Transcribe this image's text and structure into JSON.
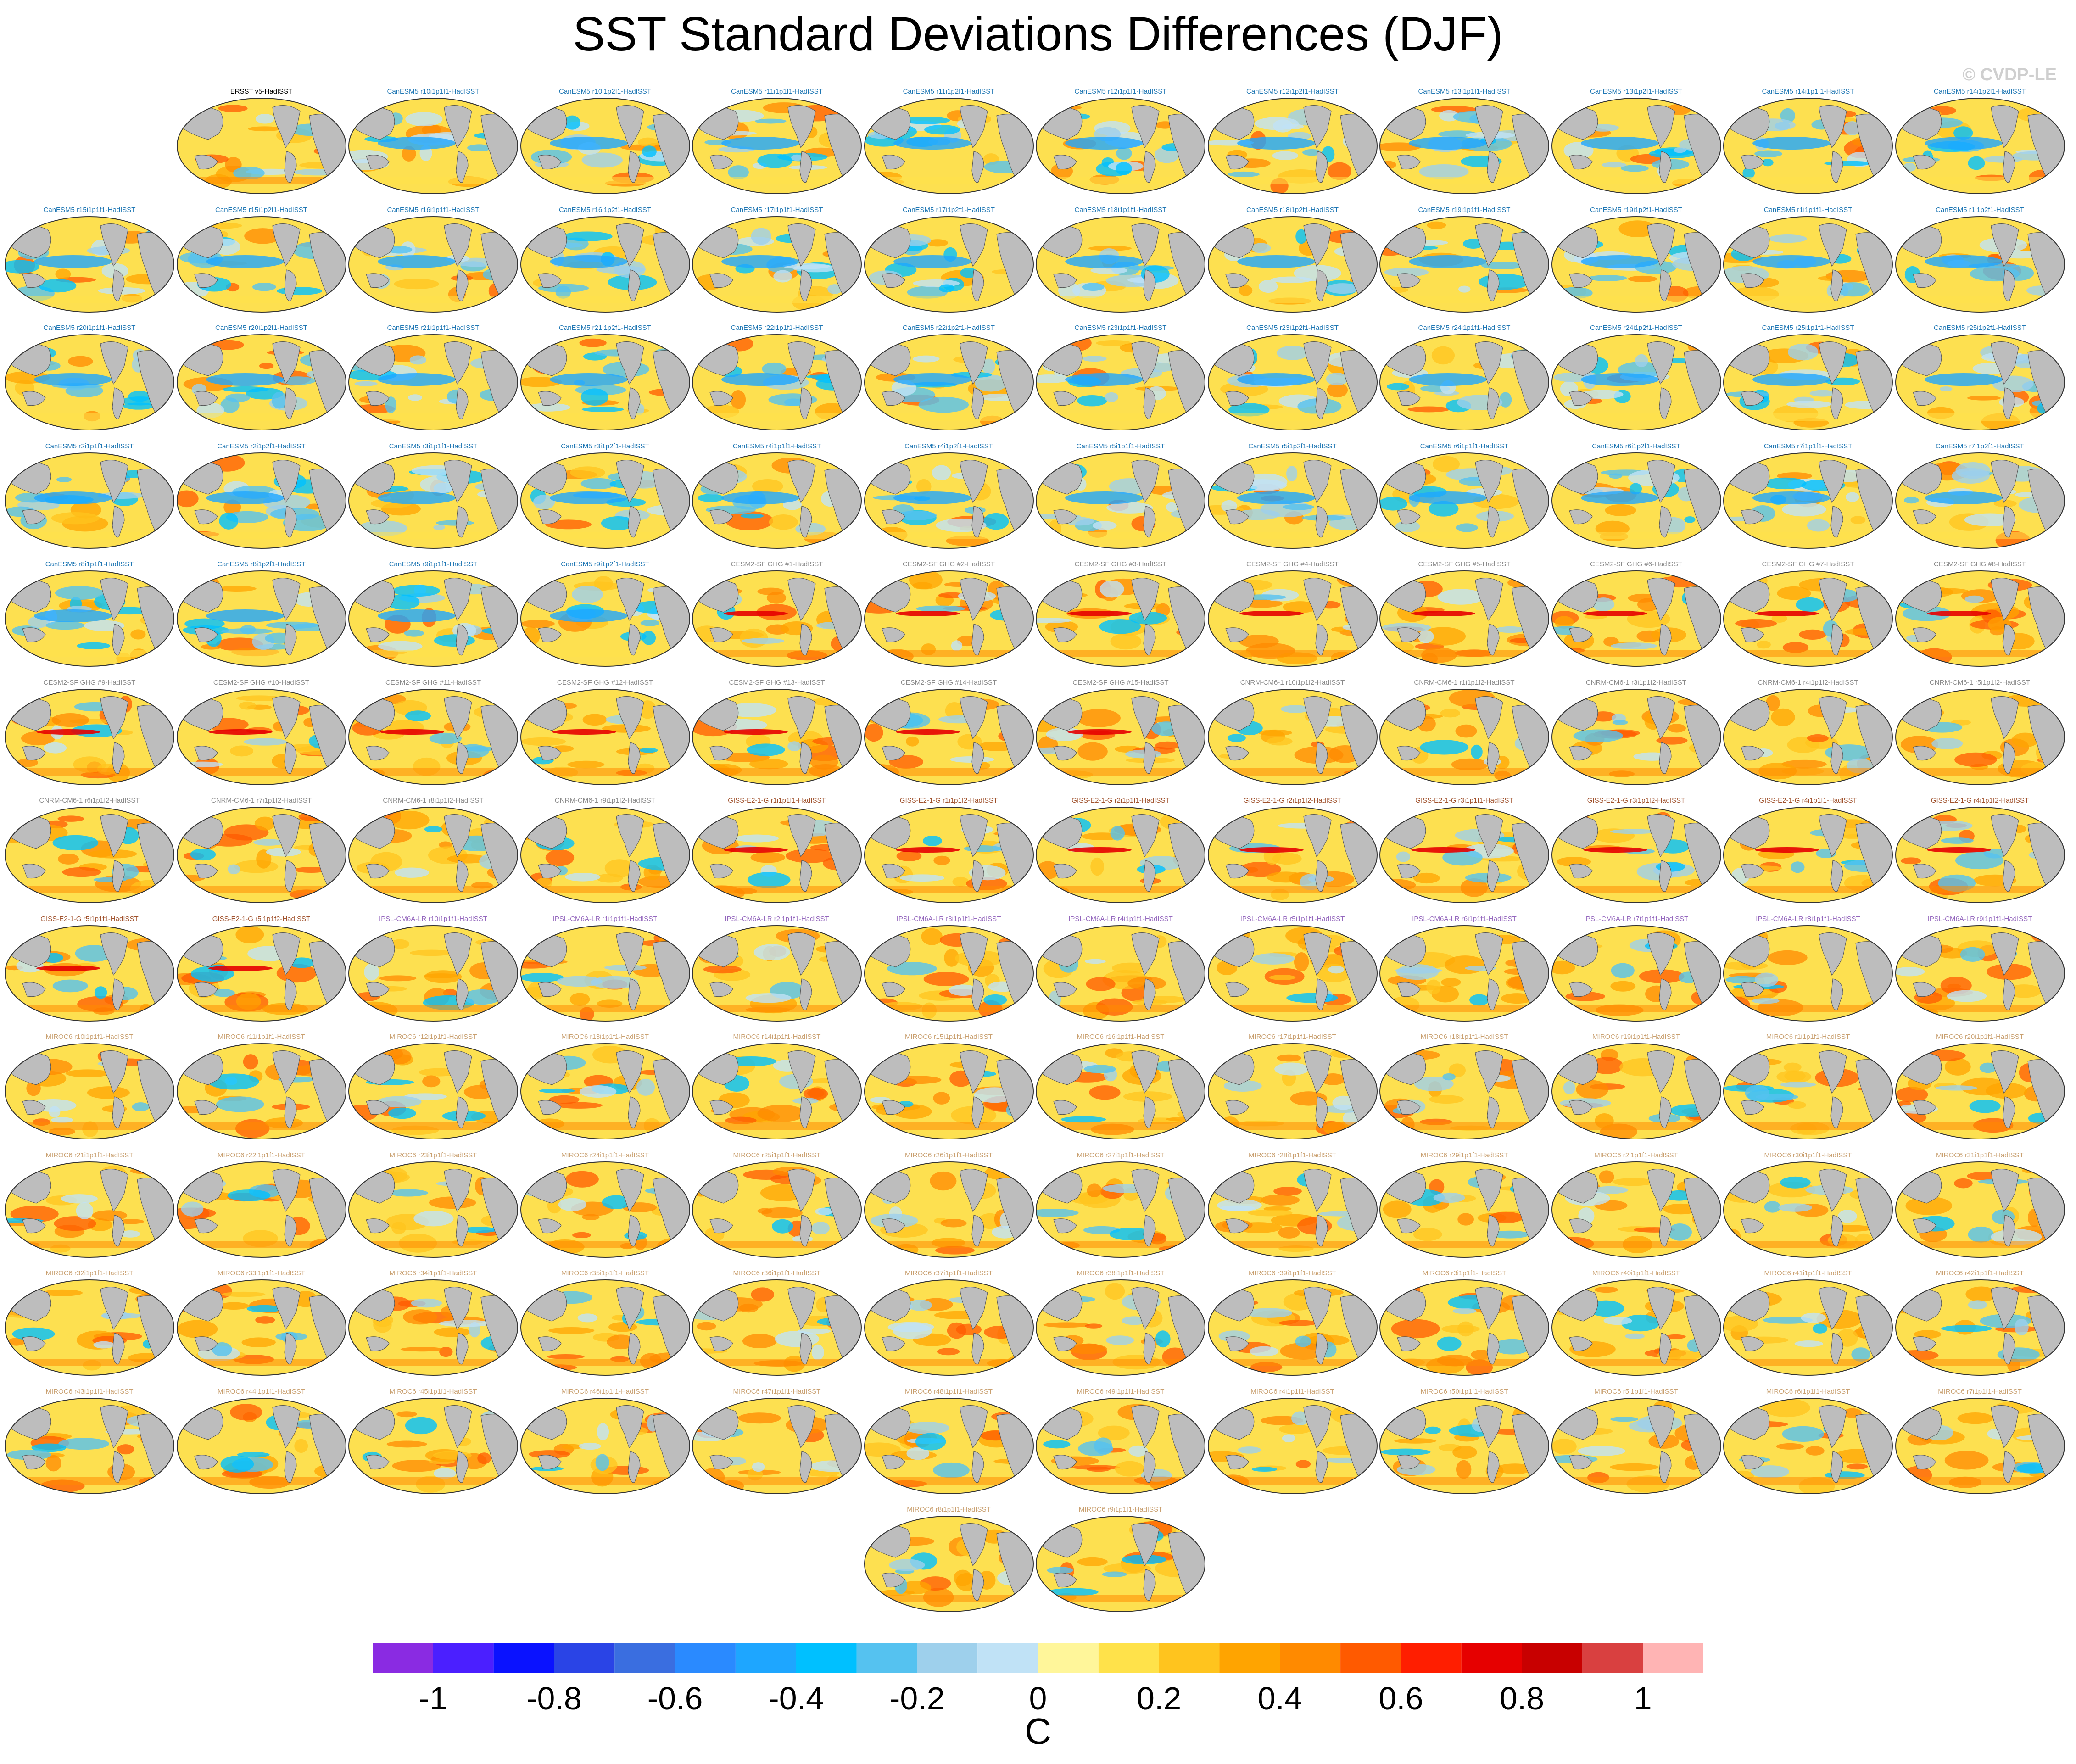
{
  "title": "SST Standard Deviations Differences (DJF)",
  "watermark": "© CVDP-LE",
  "colors": {
    "ocean_base": "#fde050",
    "land": "#bdbdbd",
    "label_colors": {
      "obs": "#000000",
      "CanESM5": "#1f77b4",
      "CESM2-SF-GHG": "#8a8a8a",
      "CNRM-CM6-1": "#8a8a8a",
      "GISS-E2-1-G": "#a0522d",
      "IPSL-CM6A-LR": "#9467bd",
      "MIROC6": "#c9a070"
    }
  },
  "chart_data": {
    "type": "heatmap",
    "title": "SST Standard Deviations Differences (DJF)",
    "colorbar": {
      "label": "C",
      "levels": [
        -1.1,
        -1.0,
        -0.9,
        -0.8,
        -0.7,
        -0.6,
        -0.5,
        -0.4,
        -0.3,
        -0.2,
        -0.1,
        0,
        0.1,
        0.2,
        0.3,
        0.4,
        0.5,
        0.6,
        0.7,
        0.8,
        0.9,
        1.0,
        1.1
      ],
      "tick_values": [
        -1,
        -0.8,
        -0.6,
        -0.4,
        -0.2,
        0,
        0.2,
        0.4,
        0.6,
        0.8,
        1
      ],
      "tick_labels": [
        "-1",
        "-0.8",
        "-0.6",
        "-0.4",
        "-0.2",
        "0",
        "0.2",
        "0.4",
        "0.6",
        "0.8",
        "1"
      ],
      "colors": [
        "#8a2be2",
        "#4b1fff",
        "#0a12ff",
        "#2a44e6",
        "#3a6ee0",
        "#2a8aff",
        "#1ea6ff",
        "#00c0ff",
        "#55c2f0",
        "#9ed0ec",
        "#c0e2f6",
        "#fff69a",
        "#ffe24a",
        "#ffc41e",
        "#ffa400",
        "#ff8a00",
        "#ff5a00",
        "#ff1e00",
        "#e60000",
        "#c80000",
        "#d94040",
        "#ffb4b4"
      ]
    },
    "panel_rows": [
      [
        "ERSST v5-HadISST",
        "CanESM5 r10i1p1f1-HadISST",
        "CanESM5 r10i1p2f1-HadISST",
        "CanESM5 r11i1p1f1-HadISST",
        "CanESM5 r11i1p2f1-HadISST",
        "CanESM5 r12i1p1f1-HadISST",
        "CanESM5 r12i1p2f1-HadISST",
        "CanESM5 r13i1p1f1-HadISST",
        "CanESM5 r13i1p2f1-HadISST",
        "CanESM5 r14i1p1f1-HadISST",
        "CanESM5 r14i1p2f1-HadISST"
      ],
      [
        "CanESM5 r15i1p1f1-HadISST",
        "CanESM5 r15i1p2f1-HadISST",
        "CanESM5 r16i1p1f1-HadISST",
        "CanESM5 r16i1p2f1-HadISST",
        "CanESM5 r17i1p1f1-HadISST",
        "CanESM5 r17i1p2f1-HadISST",
        "CanESM5 r18i1p1f1-HadISST",
        "CanESM5 r18i1p2f1-HadISST",
        "CanESM5 r19i1p1f1-HadISST",
        "CanESM5 r19i1p2f1-HadISST",
        "CanESM5 r1i1p1f1-HadISST",
        "CanESM5 r1i1p2f1-HadISST"
      ],
      [
        "CanESM5 r20i1p1f1-HadISST",
        "CanESM5 r20i1p2f1-HadISST",
        "CanESM5 r21i1p1f1-HadISST",
        "CanESM5 r21i1p2f1-HadISST",
        "CanESM5 r22i1p1f1-HadISST",
        "CanESM5 r22i1p2f1-HadISST",
        "CanESM5 r23i1p1f1-HadISST",
        "CanESM5 r23i1p2f1-HadISST",
        "CanESM5 r24i1p1f1-HadISST",
        "CanESM5 r24i1p2f1-HadISST",
        "CanESM5 r25i1p1f1-HadISST",
        "CanESM5 r25i1p2f1-HadISST"
      ],
      [
        "CanESM5 r2i1p1f1-HadISST",
        "CanESM5 r2i1p2f1-HadISST",
        "CanESM5 r3i1p1f1-HadISST",
        "CanESM5 r3i1p2f1-HadISST",
        "CanESM5 r4i1p1f1-HadISST",
        "CanESM5 r4i1p2f1-HadISST",
        "CanESM5 r5i1p1f1-HadISST",
        "CanESM5 r5i1p2f1-HadISST",
        "CanESM5 r6i1p1f1-HadISST",
        "CanESM5 r6i1p2f1-HadISST",
        "CanESM5 r7i1p1f1-HadISST",
        "CanESM5 r7i1p2f1-HadISST"
      ],
      [
        "CanESM5 r8i1p1f1-HadISST",
        "CanESM5 r8i1p2f1-HadISST",
        "CanESM5 r9i1p1f1-HadISST",
        "CanESM5 r9i1p2f1-HadISST",
        "CESM2-SF GHG #1-HadISST",
        "CESM2-SF GHG #2-HadISST",
        "CESM2-SF GHG #3-HadISST",
        "CESM2-SF GHG #4-HadISST",
        "CESM2-SF GHG #5-HadISST",
        "CESM2-SF GHG #6-HadISST",
        "CESM2-SF GHG #7-HadISST",
        "CESM2-SF GHG #8-HadISST"
      ],
      [
        "CESM2-SF GHG #9-HadISST",
        "CESM2-SF GHG #10-HadISST",
        "CESM2-SF GHG #11-HadISST",
        "CESM2-SF GHG #12-HadISST",
        "CESM2-SF GHG #13-HadISST",
        "CESM2-SF GHG #14-HadISST",
        "CESM2-SF GHG #15-HadISST",
        "CNRM-CM6-1 r10i1p1f2-HadISST",
        "CNRM-CM6-1 r1i1p1f2-HadISST",
        "CNRM-CM6-1 r3i1p1f2-HadISST",
        "CNRM-CM6-1 r4i1p1f2-HadISST",
        "CNRM-CM6-1 r5i1p1f2-HadISST"
      ],
      [
        "CNRM-CM6-1 r6i1p1f2-HadISST",
        "CNRM-CM6-1 r7i1p1f2-HadISST",
        "CNRM-CM6-1 r8i1p1f2-HadISST",
        "CNRM-CM6-1 r9i1p1f2-HadISST",
        "GISS-E2-1-G r1i1p1f1-HadISST",
        "GISS-E2-1-G r1i1p1f2-HadISST",
        "GISS-E2-1-G r2i1p1f1-HadISST",
        "GISS-E2-1-G r2i1p1f2-HadISST",
        "GISS-E2-1-G r3i1p1f1-HadISST",
        "GISS-E2-1-G r3i1p1f2-HadISST",
        "GISS-E2-1-G r4i1p1f1-HadISST",
        "GISS-E2-1-G r4i1p1f2-HadISST"
      ],
      [
        "GISS-E2-1-G r5i1p1f1-HadISST",
        "GISS-E2-1-G r5i1p1f2-HadISST",
        "IPSL-CM6A-LR r10i1p1f1-HadISST",
        "IPSL-CM6A-LR r1i1p1f1-HadISST",
        "IPSL-CM6A-LR r2i1p1f1-HadISST",
        "IPSL-CM6A-LR r3i1p1f1-HadISST",
        "IPSL-CM6A-LR r4i1p1f1-HadISST",
        "IPSL-CM6A-LR r5i1p1f1-HadISST",
        "IPSL-CM6A-LR r6i1p1f1-HadISST",
        "IPSL-CM6A-LR r7i1p1f1-HadISST",
        "IPSL-CM6A-LR r8i1p1f1-HadISST",
        "IPSL-CM6A-LR r9i1p1f1-HadISST"
      ],
      [
        "MIROC6 r10i1p1f1-HadISST",
        "MIROC6 r11i1p1f1-HadISST",
        "MIROC6 r12i1p1f1-HadISST",
        "MIROC6 r13i1p1f1-HadISST",
        "MIROC6 r14i1p1f1-HadISST",
        "MIROC6 r15i1p1f1-HadISST",
        "MIROC6 r16i1p1f1-HadISST",
        "MIROC6 r17i1p1f1-HadISST",
        "MIROC6 r18i1p1f1-HadISST",
        "MIROC6 r19i1p1f1-HadISST",
        "MIROC6 r1i1p1f1-HadISST",
        "MIROC6 r20i1p1f1-HadISST"
      ],
      [
        "MIROC6 r21i1p1f1-HadISST",
        "MIROC6 r22i1p1f1-HadISST",
        "MIROC6 r23i1p1f1-HadISST",
        "MIROC6 r24i1p1f1-HadISST",
        "MIROC6 r25i1p1f1-HadISST",
        "MIROC6 r26i1p1f1-HadISST",
        "MIROC6 r27i1p1f1-HadISST",
        "MIROC6 r28i1p1f1-HadISST",
        "MIROC6 r29i1p1f1-HadISST",
        "MIROC6 r2i1p1f1-HadISST",
        "MIROC6 r30i1p1f1-HadISST",
        "MIROC6 r31i1p1f1-HadISST"
      ],
      [
        "MIROC6 r32i1p1f1-HadISST",
        "MIROC6 r33i1p1f1-HadISST",
        "MIROC6 r34i1p1f1-HadISST",
        "MIROC6 r35i1p1f1-HadISST",
        "MIROC6 r36i1p1f1-HadISST",
        "MIROC6 r37i1p1f1-HadISST",
        "MIROC6 r38i1p1f1-HadISST",
        "MIROC6 r39i1p1f1-HadISST",
        "MIROC6 r3i1p1f1-HadISST",
        "MIROC6 r40i1p1f1-HadISST",
        "MIROC6 r41i1p1f1-HadISST",
        "MIROC6 r42i1p1f1-HadISST"
      ],
      [
        "MIROC6 r43i1p1f1-HadISST",
        "MIROC6 r44i1p1f1-HadISST",
        "MIROC6 r45i1p1f1-HadISST",
        "MIROC6 r46i1p1f1-HadISST",
        "MIROC6 r47i1p1f1-HadISST",
        "MIROC6 r48i1p1f1-HadISST",
        "MIROC6 r49i1p1f1-HadISST",
        "MIROC6 r4i1p1f1-HadISST",
        "MIROC6 r50i1p1f1-HadISST",
        "MIROC6 r5i1p1f1-HadISST",
        "MIROC6 r6i1p1f1-HadISST",
        "MIROC6 r7i1p1f1-HadISST"
      ],
      [
        "MIROC6 r8i1p1f1-HadISST",
        "MIROC6 r9i1p1f1-HadISST"
      ]
    ]
  }
}
